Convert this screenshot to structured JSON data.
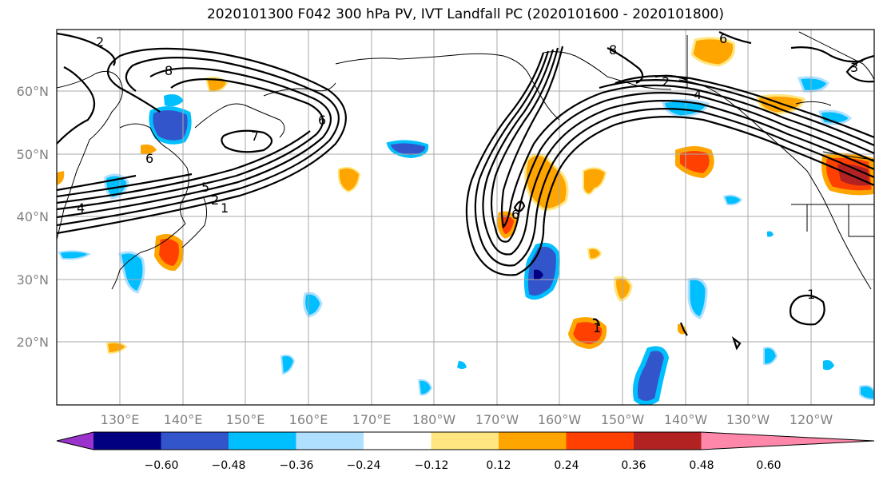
{
  "title": "2020101300 F042 300 hPa PV, IVT Landfall PC (2020101600 - 2020101800)",
  "lat_ticks": [
    "60°N",
    "50°N",
    "40°N",
    "30°N",
    "20°N"
  ],
  "lon_ticks": [
    "130°E",
    "140°E",
    "150°E",
    "160°E",
    "170°E",
    "180°W",
    "170°W",
    "160°W",
    "150°W",
    "140°W",
    "130°W",
    "120°W"
  ],
  "contour_labels": [
    "2",
    "6",
    "8",
    "7",
    "6",
    "5",
    "2",
    "1",
    "4",
    "6",
    "8",
    "2",
    "4",
    "6",
    "3",
    "1",
    "1"
  ],
  "colorbar": {
    "ticks": [
      "−0.60",
      "−0.48",
      "−0.36",
      "−0.24",
      "−0.12",
      "0.12",
      "0.24",
      "0.36",
      "0.48",
      "0.60"
    ],
    "colors": [
      "#9933cc",
      "#000080",
      "#3355cc",
      "#00bfff",
      "#b0e0ff",
      "#ffffff",
      "#ffe680",
      "#ffa500",
      "#ff4000",
      "#b22222",
      "#ff88aa"
    ]
  }
}
